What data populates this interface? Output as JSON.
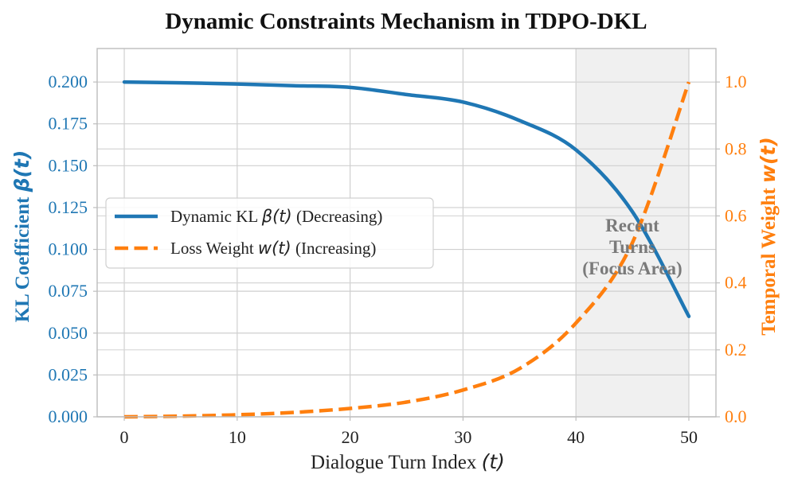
{
  "chart_data": {
    "type": "line",
    "title": "Dynamic Constraints Mechanism in TDPO-DKL",
    "x": [
      0,
      5,
      10,
      15,
      20,
      25,
      30,
      35,
      40,
      45,
      50
    ],
    "xlabel": {
      "prefix": "Dialogue Turn Index ",
      "symbol": "(t)"
    },
    "xlim": [
      -2.4,
      52.4
    ],
    "xticks": [
      "0",
      "10",
      "20",
      "30",
      "40",
      "50"
    ],
    "series": [
      {
        "name": "Dynamic KL β(t) (Decreasing)",
        "axis": "left",
        "style": "solid",
        "color": "#1f77b4",
        "values": [
          0.2,
          0.1995,
          0.1988,
          0.1978,
          0.1968,
          0.1925,
          0.188,
          0.177,
          0.1595,
          0.1225,
          0.06
        ]
      },
      {
        "name": "Loss Weight w(t) (Increasing)",
        "axis": "right",
        "style": "dashed",
        "color": "#ff7f0e",
        "values": [
          0.0,
          0.002,
          0.006,
          0.013,
          0.025,
          0.044,
          0.08,
          0.144,
          0.28,
          0.52,
          1.0
        ]
      }
    ],
    "left_axis": {
      "label_prefix": "KL Coefficient ",
      "label_symbol": "β(t)",
      "ylim": [
        0,
        0.22
      ],
      "ticks": [
        "0.000",
        "0.025",
        "0.050",
        "0.075",
        "0.100",
        "0.125",
        "0.150",
        "0.175",
        "0.200"
      ],
      "color": "#1f77b4"
    },
    "right_axis": {
      "label_prefix": "Temporal Weight ",
      "label_symbol": "w(t)",
      "ylim": [
        0,
        1.1
      ],
      "ticks": [
        "0.0",
        "0.2",
        "0.4",
        "0.6",
        "0.8",
        "1.0"
      ],
      "color": "#ff7f0e"
    },
    "legend": {
      "placement": "center-left",
      "entries": [
        {
          "prefix": "Dynamic KL ",
          "symbol": "β(t)",
          "suffix": " (Decreasing)"
        },
        {
          "prefix": "Loss Weight ",
          "symbol": "w(t)",
          "suffix": " (Increasing)"
        }
      ]
    },
    "shaded_region": {
      "x_range": [
        40,
        50
      ],
      "color": "#ebebeb",
      "label_lines": [
        "Recent",
        "Turns",
        "(Focus Area)"
      ]
    },
    "grid": true
  }
}
